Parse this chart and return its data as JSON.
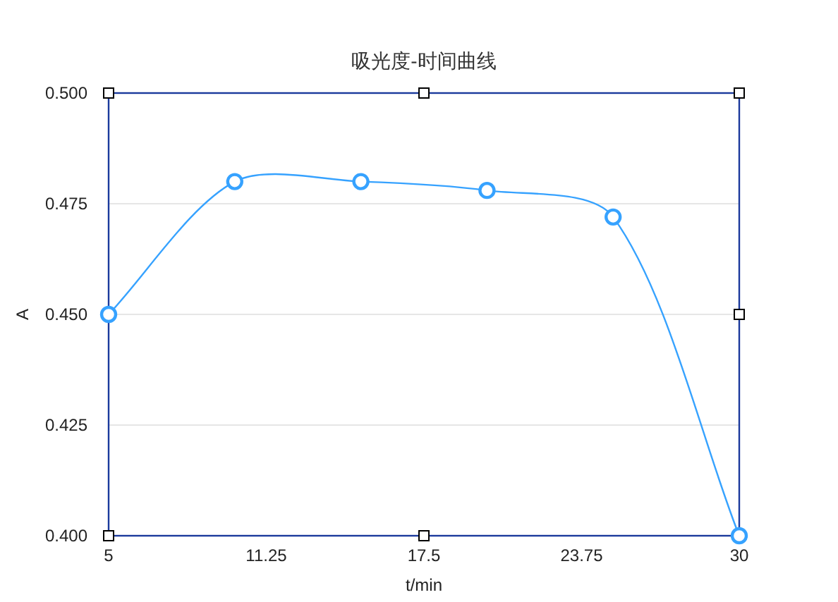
{
  "chart_data": {
    "type": "line",
    "title": "吸光度-时间曲线",
    "xlabel": "t/min",
    "ylabel": "A",
    "x": [
      5,
      10,
      15,
      20,
      25,
      30
    ],
    "series": [
      {
        "color": "#36a2ff",
        "values": [
          0.45,
          0.48,
          0.48,
          0.478,
          0.472,
          0.4
        ]
      }
    ],
    "xlim": [
      5,
      30
    ],
    "xticks": [
      5,
      11.25,
      17.5,
      23.75,
      30
    ],
    "ylim": [
      0.4,
      0.5
    ],
    "yticks": [
      {
        "value": 0.4,
        "label": "0.400"
      },
      {
        "value": 0.425,
        "label": "0.425"
      },
      {
        "value": 0.45,
        "label": "0.450"
      },
      {
        "value": 0.475,
        "label": "0.475"
      },
      {
        "value": 0.5,
        "label": "0.500"
      }
    ],
    "grid": "y",
    "marker": "circle",
    "line_style": "solid"
  }
}
